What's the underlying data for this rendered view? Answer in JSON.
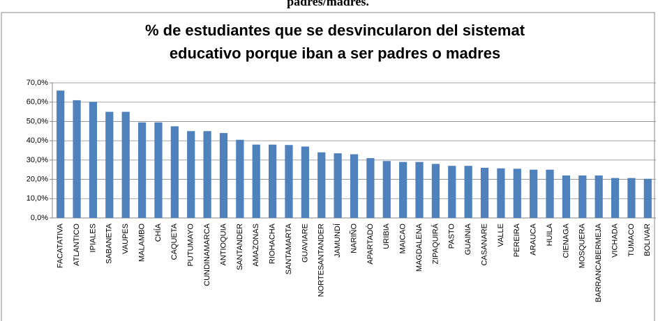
{
  "page_heading": "padres/madres.",
  "chart_data": {
    "type": "bar",
    "title": [
      "% de estudiantes que se desvincularon del sistemat",
      "educativo porque iban a ser padres o madres"
    ],
    "categories": [
      "FACATATIVA",
      "ATLANTICO",
      "IPIALES",
      "SABANETA",
      "VAUPES",
      "MALAMBO",
      "CHÍA",
      "CAQUETA",
      "PUTUMAYO",
      "CUNDINAMARCA",
      "ANTIOQUIA",
      "SANTANDER",
      "AMAZONAS",
      "RIOHACHA",
      "SANTAMARTA",
      "GUAVIARE",
      "NORTESANTANDER",
      "JAMUNDÍ",
      "NARIÑO",
      "APARTADÓ",
      "URIBIA",
      "MAICAO",
      "MAGDALENA",
      "ZIPAQUIRÁ",
      "PASTO",
      "GUAINIA",
      "CASANARE",
      "VALLE",
      "PEREIRA",
      "ARAUCA",
      "HUILA",
      "CIENAGA",
      "MOSQUERA",
      "BARRANCABERMEJA",
      "VICHADA",
      "TUMACO",
      "BOLIVAR"
    ],
    "values": [
      66,
      61,
      60.2,
      55,
      55,
      49.5,
      49.5,
      47.5,
      45,
      45,
      44,
      40.5,
      38,
      38,
      37.8,
      37,
      34,
      33.5,
      33,
      31,
      29.5,
      29,
      29,
      28,
      27,
      27,
      26,
      25.7,
      25.5,
      25,
      25,
      22,
      22,
      22,
      20.7,
      20.7,
      20.3
    ],
    "color": "#4f81bd",
    "ylim": [
      0,
      70
    ],
    "yticks": [
      {
        "value": 0,
        "label": "0,0%"
      },
      {
        "value": 10,
        "label": "10,0%"
      },
      {
        "value": 20,
        "label": "20,0%"
      },
      {
        "value": 30,
        "label": "30,0%"
      },
      {
        "value": 40,
        "label": "40,0%"
      },
      {
        "value": 50,
        "label": "50,0%"
      },
      {
        "value": 60,
        "label": "60,0%"
      },
      {
        "value": 70,
        "label": "70,0%"
      }
    ],
    "grid": true
  }
}
